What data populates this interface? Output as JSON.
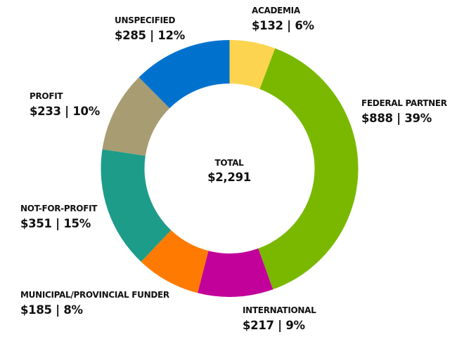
{
  "chart_data": {
    "type": "pie",
    "subtype": "donut",
    "title": "",
    "center_label": {
      "title": "TOTAL",
      "value": "$2,291"
    },
    "total": 2291,
    "currency": "$",
    "start_angle": "12 o'clock",
    "direction": "clockwise",
    "legend": "none (direct labels)",
    "categories": [
      "ACADEMIA",
      "FEDERAL PARTNER",
      "INTERNATIONAL",
      "MUNICIPAL/PROVINCIAL FUNDER",
      "NOT-FOR-PROFIT",
      "PROFIT",
      "UNSPECIFIED"
    ],
    "values": [
      132,
      888,
      217,
      185,
      351,
      233,
      285
    ],
    "percentages": [
      6,
      39,
      9,
      8,
      15,
      10,
      12
    ],
    "colors": [
      "#FCD450",
      "#7AB800",
      "#C2009A",
      "#FF7A00",
      "#1E9C8A",
      "#A89C72",
      "#0072CE"
    ],
    "labels": [
      "$132 | 6%",
      "$888 | 39%",
      "$217 | 9%",
      "$185 | 8%",
      "$351 | 15%",
      "$233 | 10%",
      "$285 | 12%"
    ]
  },
  "center": {
    "title": "TOTAL",
    "value": "$2,291"
  },
  "slices": [
    {
      "name": "ACADEMIA",
      "value_label": "$132 | 6%"
    },
    {
      "name": "FEDERAL PARTNER",
      "value_label": "$888 | 39%"
    },
    {
      "name": "INTERNATIONAL",
      "value_label": "$217 | 9%"
    },
    {
      "name": "MUNICIPAL/PROVINCIAL FUNDER",
      "value_label": "$185 | 8%"
    },
    {
      "name": "NOT-FOR-PROFIT",
      "value_label": "$351 | 15%"
    },
    {
      "name": "PROFIT",
      "value_label": "$233 | 10%"
    },
    {
      "name": "UNSPECIFIED",
      "value_label": "$285 | 12%"
    }
  ]
}
